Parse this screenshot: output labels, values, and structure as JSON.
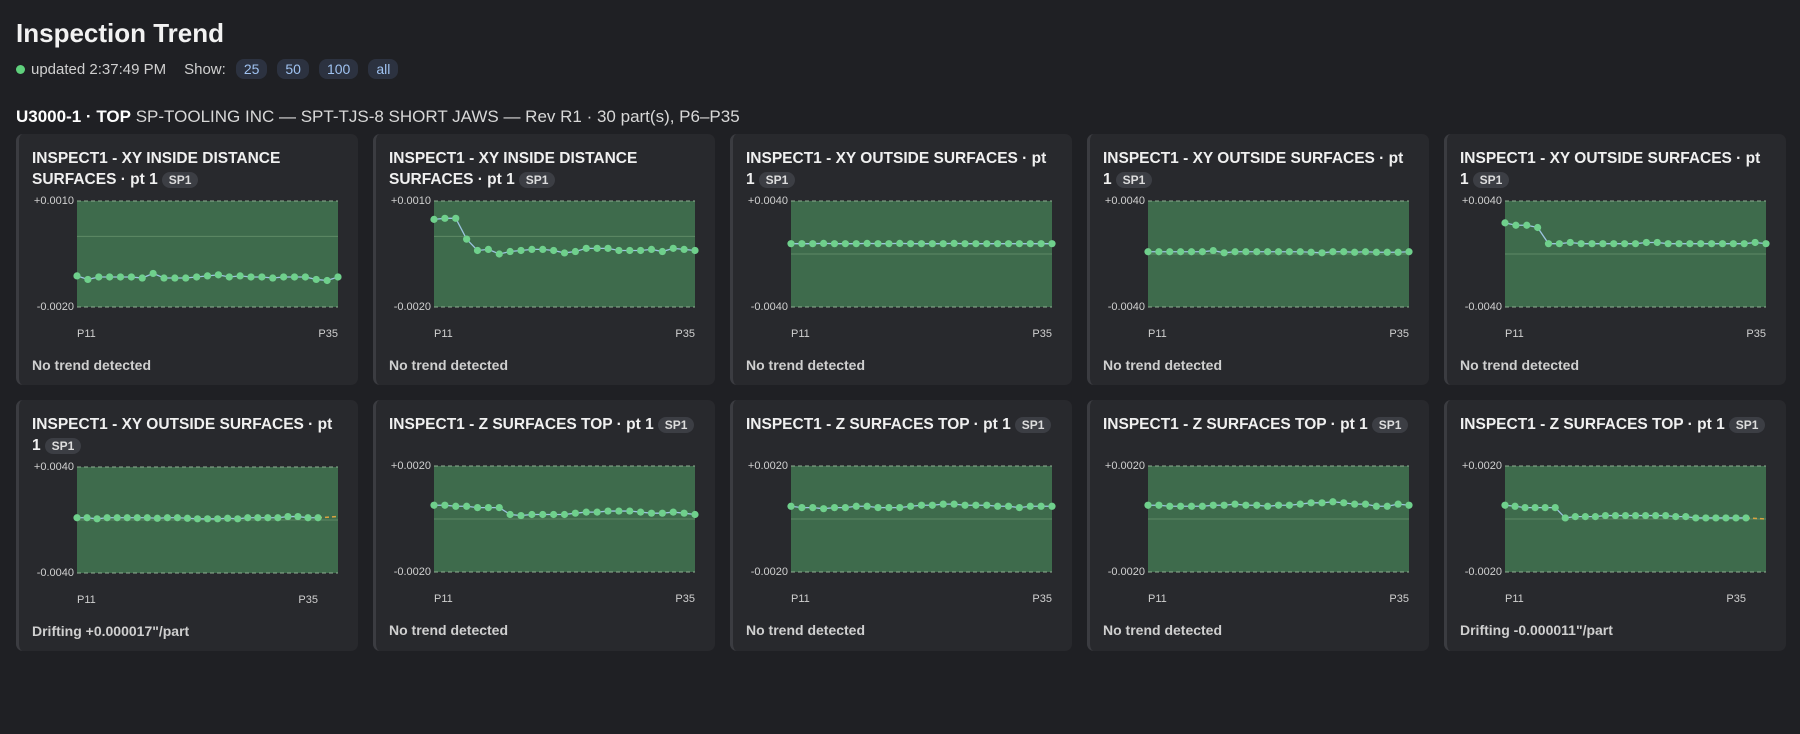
{
  "header": {
    "title": "Inspection Trend",
    "updated": "updated 2:37:49 PM",
    "show_label": "Show:",
    "show_options": [
      "25",
      "50",
      "100",
      "all"
    ]
  },
  "group": {
    "part": "U3000-1 · TOP",
    "detail": "SP-TOOLING INC — SPT-TJS-8 SHORT JAWS — Rev R1 · 30 part(s), P6–P35"
  },
  "chart_data": [
    {
      "type": "line",
      "title": "INSPECT1 - XY INSIDE DISTANCE SURFACES · pt 1",
      "badge": "SP1",
      "status": "No trend detected",
      "ylim": [
        -0.002,
        0.001
      ],
      "yticks": [
        {
          "value": 0.001,
          "label": "+0.0010"
        },
        {
          "value": -0.002,
          "label": "-0.0020"
        }
      ],
      "nominal": 0,
      "categories": [
        "P11",
        null,
        null,
        null,
        null,
        null,
        null,
        null,
        null,
        null,
        null,
        null,
        null,
        null,
        null,
        null,
        null,
        null,
        null,
        null,
        null,
        null,
        null,
        null,
        "P35"
      ],
      "values": [
        -0.00112,
        -0.00122,
        -0.00115,
        -0.00115,
        -0.00115,
        -0.00115,
        -0.00118,
        -0.00105,
        -0.00118,
        -0.00118,
        -0.00118,
        -0.00115,
        -0.00112,
        -0.00109,
        -0.00115,
        -0.00112,
        -0.00115,
        -0.00115,
        -0.00118,
        -0.00115,
        -0.00115,
        -0.00115,
        -0.00122,
        -0.00125,
        -0.00115
      ]
    },
    {
      "type": "line",
      "title": "INSPECT1 - XY INSIDE DISTANCE SURFACES · pt 1",
      "badge": "SP1",
      "status": "No trend detected",
      "ylim": [
        -0.002,
        0.001
      ],
      "yticks": [
        {
          "value": 0.001,
          "label": "+0.0010"
        },
        {
          "value": -0.002,
          "label": "-0.0020"
        }
      ],
      "nominal": 0,
      "categories": [
        "P11",
        null,
        null,
        null,
        null,
        null,
        null,
        null,
        null,
        null,
        null,
        null,
        null,
        null,
        null,
        null,
        null,
        null,
        null,
        null,
        null,
        null,
        null,
        null,
        "P35"
      ],
      "values": [
        0.00048,
        0.00051,
        0.00051,
        -8e-05,
        -0.0004,
        -0.00037,
        -0.0005,
        -0.00043,
        -0.0004,
        -0.00037,
        -0.00037,
        -0.0004,
        -0.00047,
        -0.00043,
        -0.00034,
        -0.00034,
        -0.00034,
        -0.0004,
        -0.0004,
        -0.0004,
        -0.00037,
        -0.00043,
        -0.00034,
        -0.00037,
        -0.0004
      ]
    },
    {
      "type": "line",
      "title": "INSPECT1 - XY OUTSIDE SURFACES · pt 1",
      "badge": "SP1",
      "status": "No trend detected",
      "ylim": [
        -0.004,
        0.004
      ],
      "yticks": [
        {
          "value": 0.004,
          "label": "+0.0040"
        },
        {
          "value": -0.004,
          "label": "-0.0040"
        }
      ],
      "nominal": 0,
      "categories": [
        "P11",
        null,
        null,
        null,
        null,
        null,
        null,
        null,
        null,
        null,
        null,
        null,
        null,
        null,
        null,
        null,
        null,
        null,
        null,
        null,
        null,
        null,
        null,
        null,
        "P35"
      ],
      "values": [
        0.00078,
        0.00078,
        0.00078,
        0.0008,
        0.00078,
        0.00078,
        0.00078,
        0.0008,
        0.00078,
        0.00078,
        0.0008,
        0.00078,
        0.00078,
        0.00078,
        0.00078,
        0.0008,
        0.00078,
        0.00078,
        0.00078,
        0.00078,
        0.00078,
        0.00078,
        0.00078,
        0.00078,
        0.00078
      ]
    },
    {
      "type": "line",
      "title": "INSPECT1 - XY OUTSIDE SURFACES · pt 1",
      "badge": "SP1",
      "status": "No trend detected",
      "ylim": [
        -0.004,
        0.004
      ],
      "yticks": [
        {
          "value": 0.004,
          "label": "+0.0040"
        },
        {
          "value": -0.004,
          "label": "-0.0040"
        }
      ],
      "nominal": 0,
      "categories": [
        "P11",
        null,
        null,
        null,
        null,
        null,
        null,
        null,
        null,
        null,
        null,
        null,
        null,
        null,
        null,
        null,
        null,
        null,
        null,
        null,
        null,
        null,
        null,
        null,
        "P35"
      ],
      "values": [
        0.00017,
        0.00017,
        0.00017,
        0.00017,
        0.00017,
        0.00017,
        0.00026,
        9e-05,
        0.00017,
        0.00017,
        0.00017,
        0.00017,
        0.00017,
        0.00017,
        0.00017,
        0.00013,
        9e-05,
        0.00017,
        0.00017,
        0.00013,
        0.00017,
        0.00013,
        0.00013,
        0.00013,
        0.00017
      ]
    },
    {
      "type": "line",
      "title": "INSPECT1 - XY OUTSIDE SURFACES · pt 1",
      "badge": "SP1",
      "status": "No trend detected",
      "ylim": [
        -0.004,
        0.004
      ],
      "yticks": [
        {
          "value": 0.004,
          "label": "+0.0040"
        },
        {
          "value": -0.004,
          "label": "-0.0040"
        }
      ],
      "nominal": 0,
      "categories": [
        "P11",
        null,
        null,
        null,
        null,
        null,
        null,
        null,
        null,
        null,
        null,
        null,
        null,
        null,
        null,
        null,
        null,
        null,
        null,
        null,
        null,
        null,
        null,
        null,
        "P35"
      ],
      "values": [
        0.00235,
        0.00217,
        0.00217,
        0.002,
        0.00078,
        0.00078,
        0.00087,
        0.00078,
        0.00078,
        0.00078,
        0.00078,
        0.00078,
        0.00078,
        0.00087,
        0.00087,
        0.00078,
        0.00078,
        0.00078,
        0.00078,
        0.00078,
        0.00078,
        0.00078,
        0.00078,
        0.00087,
        0.00078
      ]
    },
    {
      "type": "line",
      "title": "INSPECT1 - XY OUTSIDE SURFACES · pt 1",
      "badge": "SP1",
      "status": "Drifting +0.000017\"/part",
      "ylim": [
        -0.004,
        0.004
      ],
      "yticks": [
        {
          "value": 0.004,
          "label": "+0.0040"
        },
        {
          "value": -0.004,
          "label": "-0.0040"
        }
      ],
      "nominal": 0,
      "trend_end": 0.00026,
      "categories": [
        "P11",
        null,
        null,
        null,
        null,
        null,
        null,
        null,
        null,
        null,
        null,
        null,
        null,
        null,
        null,
        null,
        null,
        null,
        null,
        null,
        null,
        null,
        null,
        null,
        "P35"
      ],
      "values": [
        0.00017,
        0.00017,
        9e-05,
        0.00017,
        0.00017,
        0.00017,
        0.00017,
        0.00017,
        0.00013,
        0.00017,
        0.00017,
        0.00013,
        9e-05,
        9e-05,
        9e-05,
        0.00013,
        9e-05,
        0.00017,
        0.00017,
        0.00017,
        0.00017,
        0.00026,
        0.00026,
        0.00017,
        0.00017
      ]
    },
    {
      "type": "line",
      "title": "INSPECT1 - Z SURFACES TOP · pt 1",
      "badge": "SP1",
      "status": "No trend detected",
      "ylim": [
        -0.002,
        0.002
      ],
      "yticks": [
        {
          "value": 0.002,
          "label": "+0.0020"
        },
        {
          "value": -0.002,
          "label": "-0.0020"
        }
      ],
      "nominal": 0,
      "categories": [
        "P11",
        null,
        null,
        null,
        null,
        null,
        null,
        null,
        null,
        null,
        null,
        null,
        null,
        null,
        null,
        null,
        null,
        null,
        null,
        null,
        null,
        null,
        null,
        null,
        "P35"
      ],
      "values": [
        0.00052,
        0.00052,
        0.00048,
        0.00048,
        0.00043,
        0.00043,
        0.00043,
        0.00017,
        0.00013,
        0.00017,
        0.00017,
        0.00017,
        0.00017,
        0.00022,
        0.00026,
        0.00026,
        0.0003,
        0.0003,
        0.0003,
        0.00026,
        0.00022,
        0.00022,
        0.00026,
        0.00022,
        0.00017
      ]
    },
    {
      "type": "line",
      "title": "INSPECT1 - Z SURFACES TOP · pt 1",
      "badge": "SP1",
      "status": "No trend detected",
      "ylim": [
        -0.002,
        0.002
      ],
      "yticks": [
        {
          "value": 0.002,
          "label": "+0.0020"
        },
        {
          "value": -0.002,
          "label": "-0.0020"
        }
      ],
      "nominal": 0,
      "categories": [
        "P11",
        null,
        null,
        null,
        null,
        null,
        null,
        null,
        null,
        null,
        null,
        null,
        null,
        null,
        null,
        null,
        null,
        null,
        null,
        null,
        null,
        null,
        null,
        null,
        "P35"
      ],
      "values": [
        0.00048,
        0.00043,
        0.00043,
        0.00039,
        0.00043,
        0.00043,
        0.00048,
        0.00048,
        0.00043,
        0.00043,
        0.00043,
        0.00048,
        0.00052,
        0.00052,
        0.00056,
        0.00056,
        0.00052,
        0.00052,
        0.00052,
        0.00048,
        0.00048,
        0.00043,
        0.00048,
        0.00048,
        0.00048
      ]
    },
    {
      "type": "line",
      "title": "INSPECT1 - Z SURFACES TOP · pt 1",
      "badge": "SP1",
      "status": "No trend detected",
      "ylim": [
        -0.002,
        0.002
      ],
      "yticks": [
        {
          "value": 0.002,
          "label": "+0.0020"
        },
        {
          "value": -0.002,
          "label": "-0.0020"
        }
      ],
      "nominal": 0,
      "categories": [
        "P11",
        null,
        null,
        null,
        null,
        null,
        null,
        null,
        null,
        null,
        null,
        null,
        null,
        null,
        null,
        null,
        null,
        null,
        null,
        null,
        null,
        null,
        null,
        null,
        "P35"
      ],
      "values": [
        0.00052,
        0.00052,
        0.00048,
        0.00048,
        0.00048,
        0.00048,
        0.00052,
        0.00052,
        0.00056,
        0.00052,
        0.00052,
        0.00048,
        0.00052,
        0.00052,
        0.00056,
        0.00061,
        0.00061,
        0.00065,
        0.00061,
        0.00056,
        0.00056,
        0.00048,
        0.00048,
        0.00056,
        0.00052
      ]
    },
    {
      "type": "line",
      "title": "INSPECT1 - Z SURFACES TOP · pt 1",
      "badge": "SP1",
      "status": "Drifting -0.000011\"/part",
      "ylim": [
        -0.002,
        0.002
      ],
      "yticks": [
        {
          "value": 0.002,
          "label": "+0.0020"
        },
        {
          "value": -0.002,
          "label": "-0.0020"
        }
      ],
      "nominal": 0,
      "trend_end": 0,
      "categories": [
        "P11",
        null,
        null,
        null,
        null,
        null,
        null,
        null,
        null,
        null,
        null,
        null,
        null,
        null,
        null,
        null,
        null,
        null,
        null,
        null,
        null,
        null,
        null,
        null,
        "P35"
      ],
      "values": [
        0.00052,
        0.00048,
        0.00043,
        0.00043,
        0.00043,
        0.00043,
        4e-05,
        9e-05,
        9e-05,
        9e-05,
        0.00013,
        0.00013,
        0.00013,
        0.00013,
        0.00013,
        0.00013,
        0.00013,
        9e-05,
        9e-05,
        4e-05,
        4e-05,
        4e-05,
        4e-05,
        4e-05,
        4e-05
      ]
    }
  ]
}
